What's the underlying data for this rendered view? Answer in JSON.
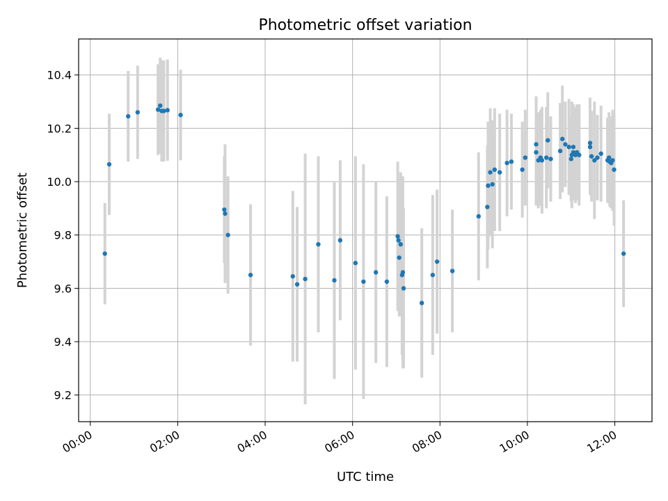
{
  "chart_data": {
    "type": "scatter",
    "title": "Photometric offset variation",
    "xlabel": "UTC time",
    "ylabel": "Photometric offset",
    "xlim": [
      "23:44",
      "12:51"
    ],
    "ylim": [
      9.1,
      10.535
    ],
    "grid": true,
    "colors": {
      "point": "#1f77b4",
      "errorbar": "#d3d3d3",
      "grid": "#b0b0b0"
    },
    "x_ticks": [
      "00:00",
      "02:00",
      "04:00",
      "06:00",
      "08:00",
      "10:00",
      "12:00"
    ],
    "y_ticks": [
      "9.2",
      "9.4",
      "9.6",
      "9.8",
      "10.0",
      "10.2",
      "10.4"
    ],
    "series": [
      {
        "x": [
          "00:20",
          "00:26",
          "00:52",
          "01:05",
          "01:33",
          "01:36",
          "01:38",
          "01:41",
          "01:46",
          "02:04",
          "03:04",
          "03:05",
          "03:09",
          "03:40",
          "04:38",
          "04:44",
          "04:55",
          "05:13",
          "05:35",
          "05:43",
          "06:04",
          "06:15",
          "06:32",
          "06:47",
          "07:02",
          "07:03",
          "07:04",
          "07:06",
          "07:08",
          "07:09",
          "07:10",
          "07:35",
          "07:50",
          "07:56",
          "08:17",
          "08:53",
          "09:05",
          "09:06",
          "09:09",
          "09:12",
          "09:15",
          "09:22",
          "09:32",
          "09:38",
          "09:53",
          "09:57",
          "10:12",
          "10:12",
          "10:15",
          "10:18",
          "10:20",
          "10:26",
          "10:28",
          "10:32",
          "10:45",
          "10:48",
          "10:52",
          "10:57",
          "11:00",
          "11:01",
          "11:03",
          "11:03",
          "11:06",
          "11:08",
          "11:11",
          "11:26",
          "11:26",
          "11:28",
          "11:32",
          "11:36",
          "11:41",
          "11:50",
          "11:52",
          "11:53",
          "11:55",
          "11:57",
          "11:59",
          "12:12"
        ],
        "y": [
          9.73,
          10.065,
          10.245,
          10.26,
          10.27,
          10.285,
          10.265,
          10.265,
          10.268,
          10.25,
          9.895,
          9.88,
          9.8,
          9.65,
          9.645,
          9.615,
          9.635,
          9.765,
          9.63,
          9.78,
          9.695,
          9.625,
          9.66,
          9.625,
          9.795,
          9.78,
          9.715,
          9.765,
          9.65,
          9.66,
          9.6,
          9.545,
          9.65,
          9.7,
          9.665,
          9.87,
          9.905,
          9.985,
          10.035,
          9.99,
          10.045,
          10.035,
          10.07,
          10.075,
          10.045,
          10.09,
          10.14,
          10.11,
          10.08,
          10.09,
          10.08,
          10.09,
          10.155,
          10.085,
          10.115,
          10.16,
          10.14,
          10.13,
          10.085,
          10.1,
          10.11,
          10.13,
          10.1,
          10.11,
          10.1,
          10.145,
          10.13,
          10.095,
          10.08,
          10.09,
          10.105,
          10.08,
          10.09,
          10.075,
          10.07,
          10.08,
          10.045,
          9.73
        ],
        "yerr": [
          0.19,
          0.19,
          0.17,
          0.175,
          0.17,
          0.18,
          0.19,
          0.19,
          0.19,
          0.17,
          0.2,
          0.26,
          0.22,
          0.265,
          0.32,
          0.29,
          0.47,
          0.33,
          0.37,
          0.3,
          0.4,
          0.44,
          0.34,
          0.32,
          0.28,
          0.23,
          0.22,
          0.27,
          0.3,
          0.36,
          0.3,
          0.28,
          0.3,
          0.27,
          0.23,
          0.24,
          0.23,
          0.24,
          0.24,
          0.24,
          0.23,
          0.22,
          0.2,
          0.18,
          0.18,
          0.18,
          0.18,
          0.2,
          0.18,
          0.18,
          0.2,
          0.19,
          0.18,
          0.16,
          0.18,
          0.2,
          0.16,
          0.18,
          0.16,
          0.2,
          0.18,
          0.16,
          0.18,
          0.18,
          0.19,
          0.17,
          0.18,
          0.17,
          0.22,
          0.16,
          0.18,
          0.16,
          0.17,
          0.17,
          0.17,
          0.19,
          0.21,
          0.2
        ]
      }
    ]
  }
}
